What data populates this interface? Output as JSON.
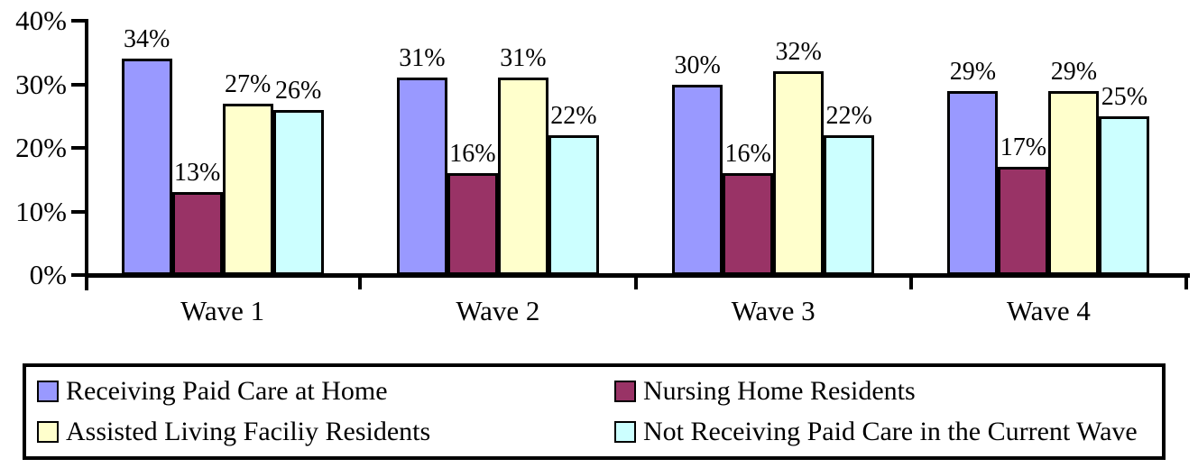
{
  "chart_data": {
    "type": "bar",
    "categories": [
      "Wave 1",
      "Wave 2",
      "Wave 3",
      "Wave 4"
    ],
    "series": [
      {
        "name": "Receiving Paid Care at Home",
        "color": "#9999FF",
        "values": [
          34,
          31,
          30,
          29
        ]
      },
      {
        "name": "Nursing Home Residents",
        "color": "#993366",
        "values": [
          13,
          16,
          16,
          17
        ]
      },
      {
        "name": "Assisted Living Faciliy Residents",
        "color": "#FFFFCC",
        "values": [
          27,
          31,
          32,
          29
        ]
      },
      {
        "name": "Not Receiving Paid Care in the Current Wave",
        "color": "#CCFFFF",
        "values": [
          26,
          22,
          22,
          25
        ]
      }
    ],
    "value_suffix": "%",
    "bar_labels": [
      "34%",
      "13%",
      "27%",
      "26%",
      "31%",
      "16%",
      "31%",
      "22%",
      "30%",
      "16%",
      "32%",
      "22%",
      "29%",
      "17%",
      "29%",
      "25%"
    ],
    "ylim": [
      0,
      40
    ],
    "yticks": [
      "0%",
      "10%",
      "20%",
      "30%",
      "40%"
    ],
    "grid": false,
    "legend_position": "bottom",
    "legend_columns": 2,
    "axis_color": "#000000",
    "bar_border_color": "#000000",
    "background_color": "#FFFFFF"
  }
}
